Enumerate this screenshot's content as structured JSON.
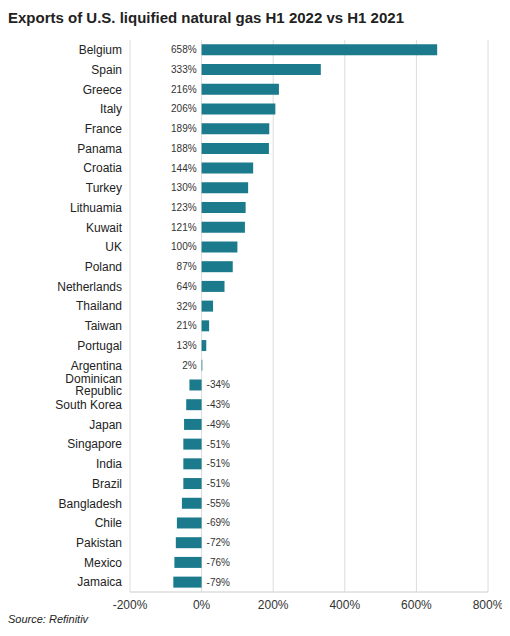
{
  "chart_data": {
    "type": "bar",
    "orientation": "horizontal",
    "title": "Exports of U.S. liquified natural gas H1 2022 vs H1 2021",
    "source": "Source: Refinitiv",
    "categories": [
      "Belgium",
      "Spain",
      "Greece",
      "Italy",
      "France",
      "Panama",
      "Croatia",
      "Turkey",
      "Lithuamia",
      "Kuwait",
      "UK",
      "Poland",
      "Netherlands",
      "Thailand",
      "Taiwan",
      "Portugal",
      "Argentina",
      "Dominican Republic",
      "South Korea",
      "Japan",
      "Singapore",
      "India",
      "Brazil",
      "Bangladesh",
      "Chile",
      "Pakistan",
      "Mexico",
      "Jamaica"
    ],
    "values": [
      658,
      333,
      216,
      206,
      189,
      188,
      144,
      130,
      123,
      121,
      100,
      87,
      64,
      32,
      21,
      13,
      2,
      -34,
      -43,
      -49,
      -51,
      -51,
      -51,
      -55,
      -69,
      -72,
      -76,
      -79
    ],
    "value_labels": [
      "658%",
      "333%",
      "216%",
      "206%",
      "189%",
      "188%",
      "144%",
      "130%",
      "123%",
      "121%",
      "100%",
      "87%",
      "64%",
      "32%",
      "21%",
      "13%",
      "2%",
      "-34%",
      "-43%",
      "-49%",
      "-51%",
      "-51%",
      "-51%",
      "-55%",
      "-69%",
      "-72%",
      "-76%",
      "-79%"
    ],
    "color": "#1b7a8c",
    "xlim": [
      -200,
      800
    ],
    "xticks": [
      {
        "value": -200,
        "label": "-200%"
      },
      {
        "value": 0,
        "label": "0%"
      },
      {
        "value": 200,
        "label": "200%"
      },
      {
        "value": 400,
        "label": "400%"
      },
      {
        "value": 600,
        "label": "600%"
      },
      {
        "value": 800,
        "label": "800%"
      }
    ],
    "grid": true,
    "data_labels": true
  }
}
